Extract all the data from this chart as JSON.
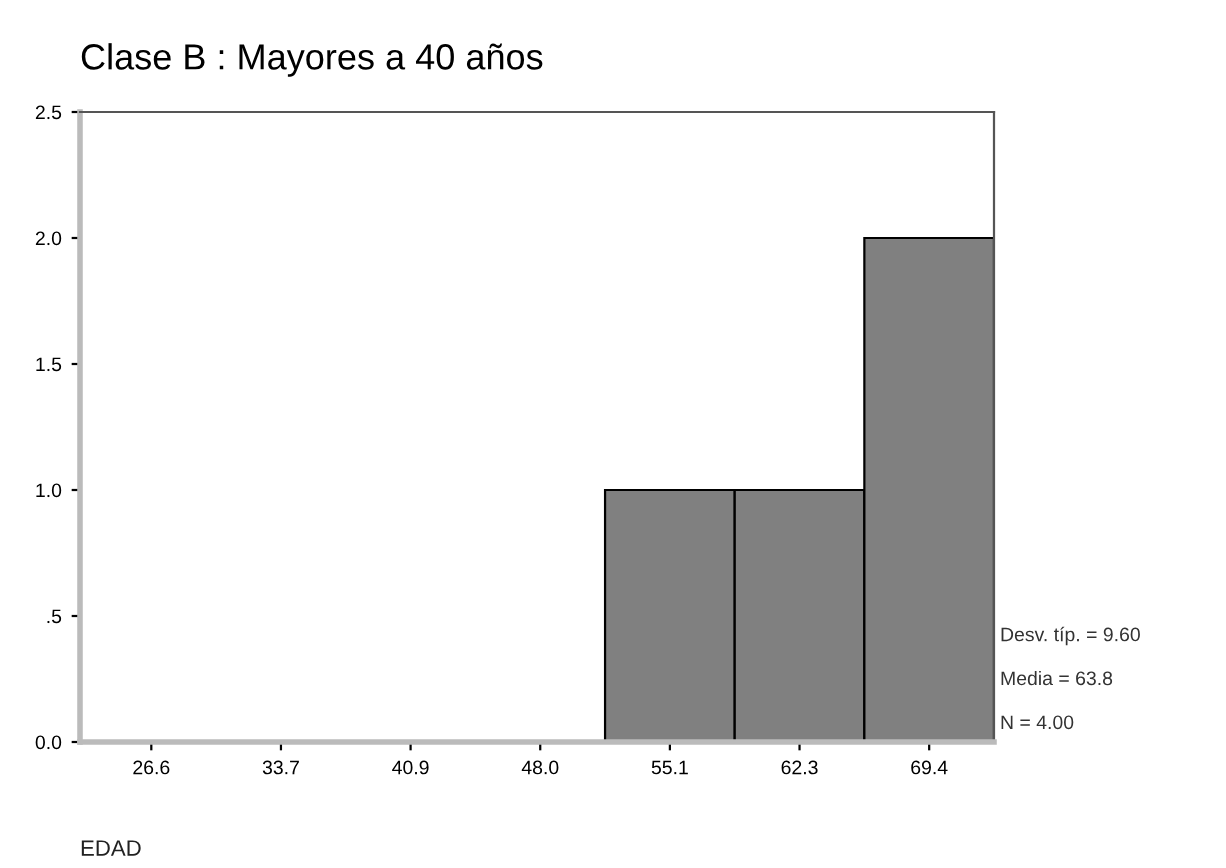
{
  "chart_data": {
    "type": "bar",
    "title": "Clase B : Mayores a 40 años",
    "xlabel": "EDAD",
    "categories": [
      "26.6",
      "33.7",
      "40.9",
      "48.0",
      "55.1",
      "62.3",
      "69.4"
    ],
    "values": [
      0,
      0,
      0,
      0,
      1,
      1,
      2
    ],
    "color": "#808080",
    "ylim": [
      0,
      2.5
    ],
    "yticks": [
      {
        "value": 0,
        "label": "0.0"
      },
      {
        "value": 0.5,
        "label": ".5"
      },
      {
        "value": 1,
        "label": "1.0"
      },
      {
        "value": 1.5,
        "label": "1.5"
      },
      {
        "value": 2,
        "label": "2.0"
      },
      {
        "value": 2.5,
        "label": "2.5"
      }
    ],
    "annotations": [
      "Desv. típ. = 9.60",
      "Media = 63.8",
      "N = 4.00"
    ],
    "grid": false,
    "legend": false
  }
}
